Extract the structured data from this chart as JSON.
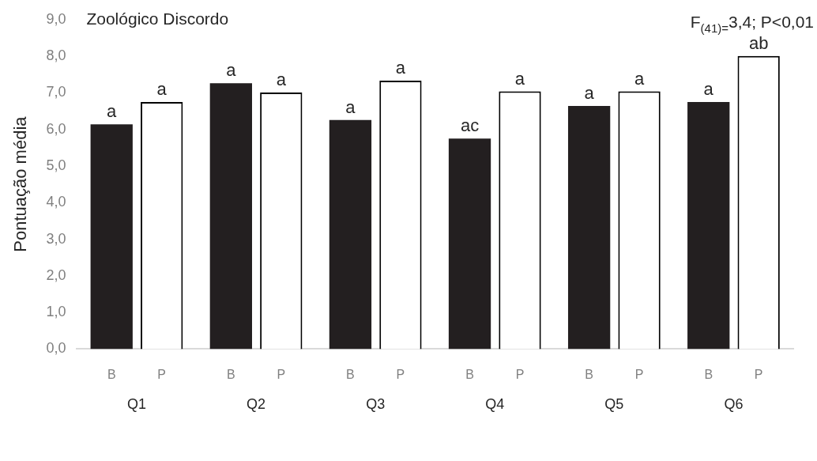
{
  "chart_data": {
    "type": "bar",
    "title": "Zoológico Discordo",
    "ylabel": "Pontuação média",
    "categories": [
      "Q1",
      "Q2",
      "Q3",
      "Q4",
      "Q5",
      "Q6"
    ],
    "series": [
      {
        "name": "B",
        "color": "#231f20",
        "values": [
          6.14,
          7.26,
          6.26,
          5.75,
          6.64,
          6.75
        ],
        "value_labels": [
          "a",
          "a",
          "a",
          "ac",
          "a",
          "a"
        ]
      },
      {
        "name": "P",
        "color": "#ffffff",
        "values": [
          6.75,
          7.01,
          7.33,
          7.04,
          7.04,
          8.01
        ],
        "value_labels": [
          "a",
          "a",
          "a",
          "a",
          "a",
          "ab"
        ]
      }
    ],
    "ylim": [
      0,
      9
    ],
    "yticks": [
      {
        "value": 0,
        "label": "0,0"
      },
      {
        "value": 1,
        "label": "1,0"
      },
      {
        "value": 2,
        "label": "2,0"
      },
      {
        "value": 3,
        "label": "3,0"
      },
      {
        "value": 4,
        "label": "4,0"
      },
      {
        "value": 5,
        "label": "5,0"
      },
      {
        "value": 6,
        "label": "6,0"
      },
      {
        "value": 7,
        "label": "7,0"
      },
      {
        "value": 8,
        "label": "8,0"
      },
      {
        "value": 9,
        "label": "9,0"
      }
    ],
    "grid": false,
    "legend": false,
    "annotations": [
      "F$_{(41)=}$3,4; P<0,01"
    ]
  }
}
